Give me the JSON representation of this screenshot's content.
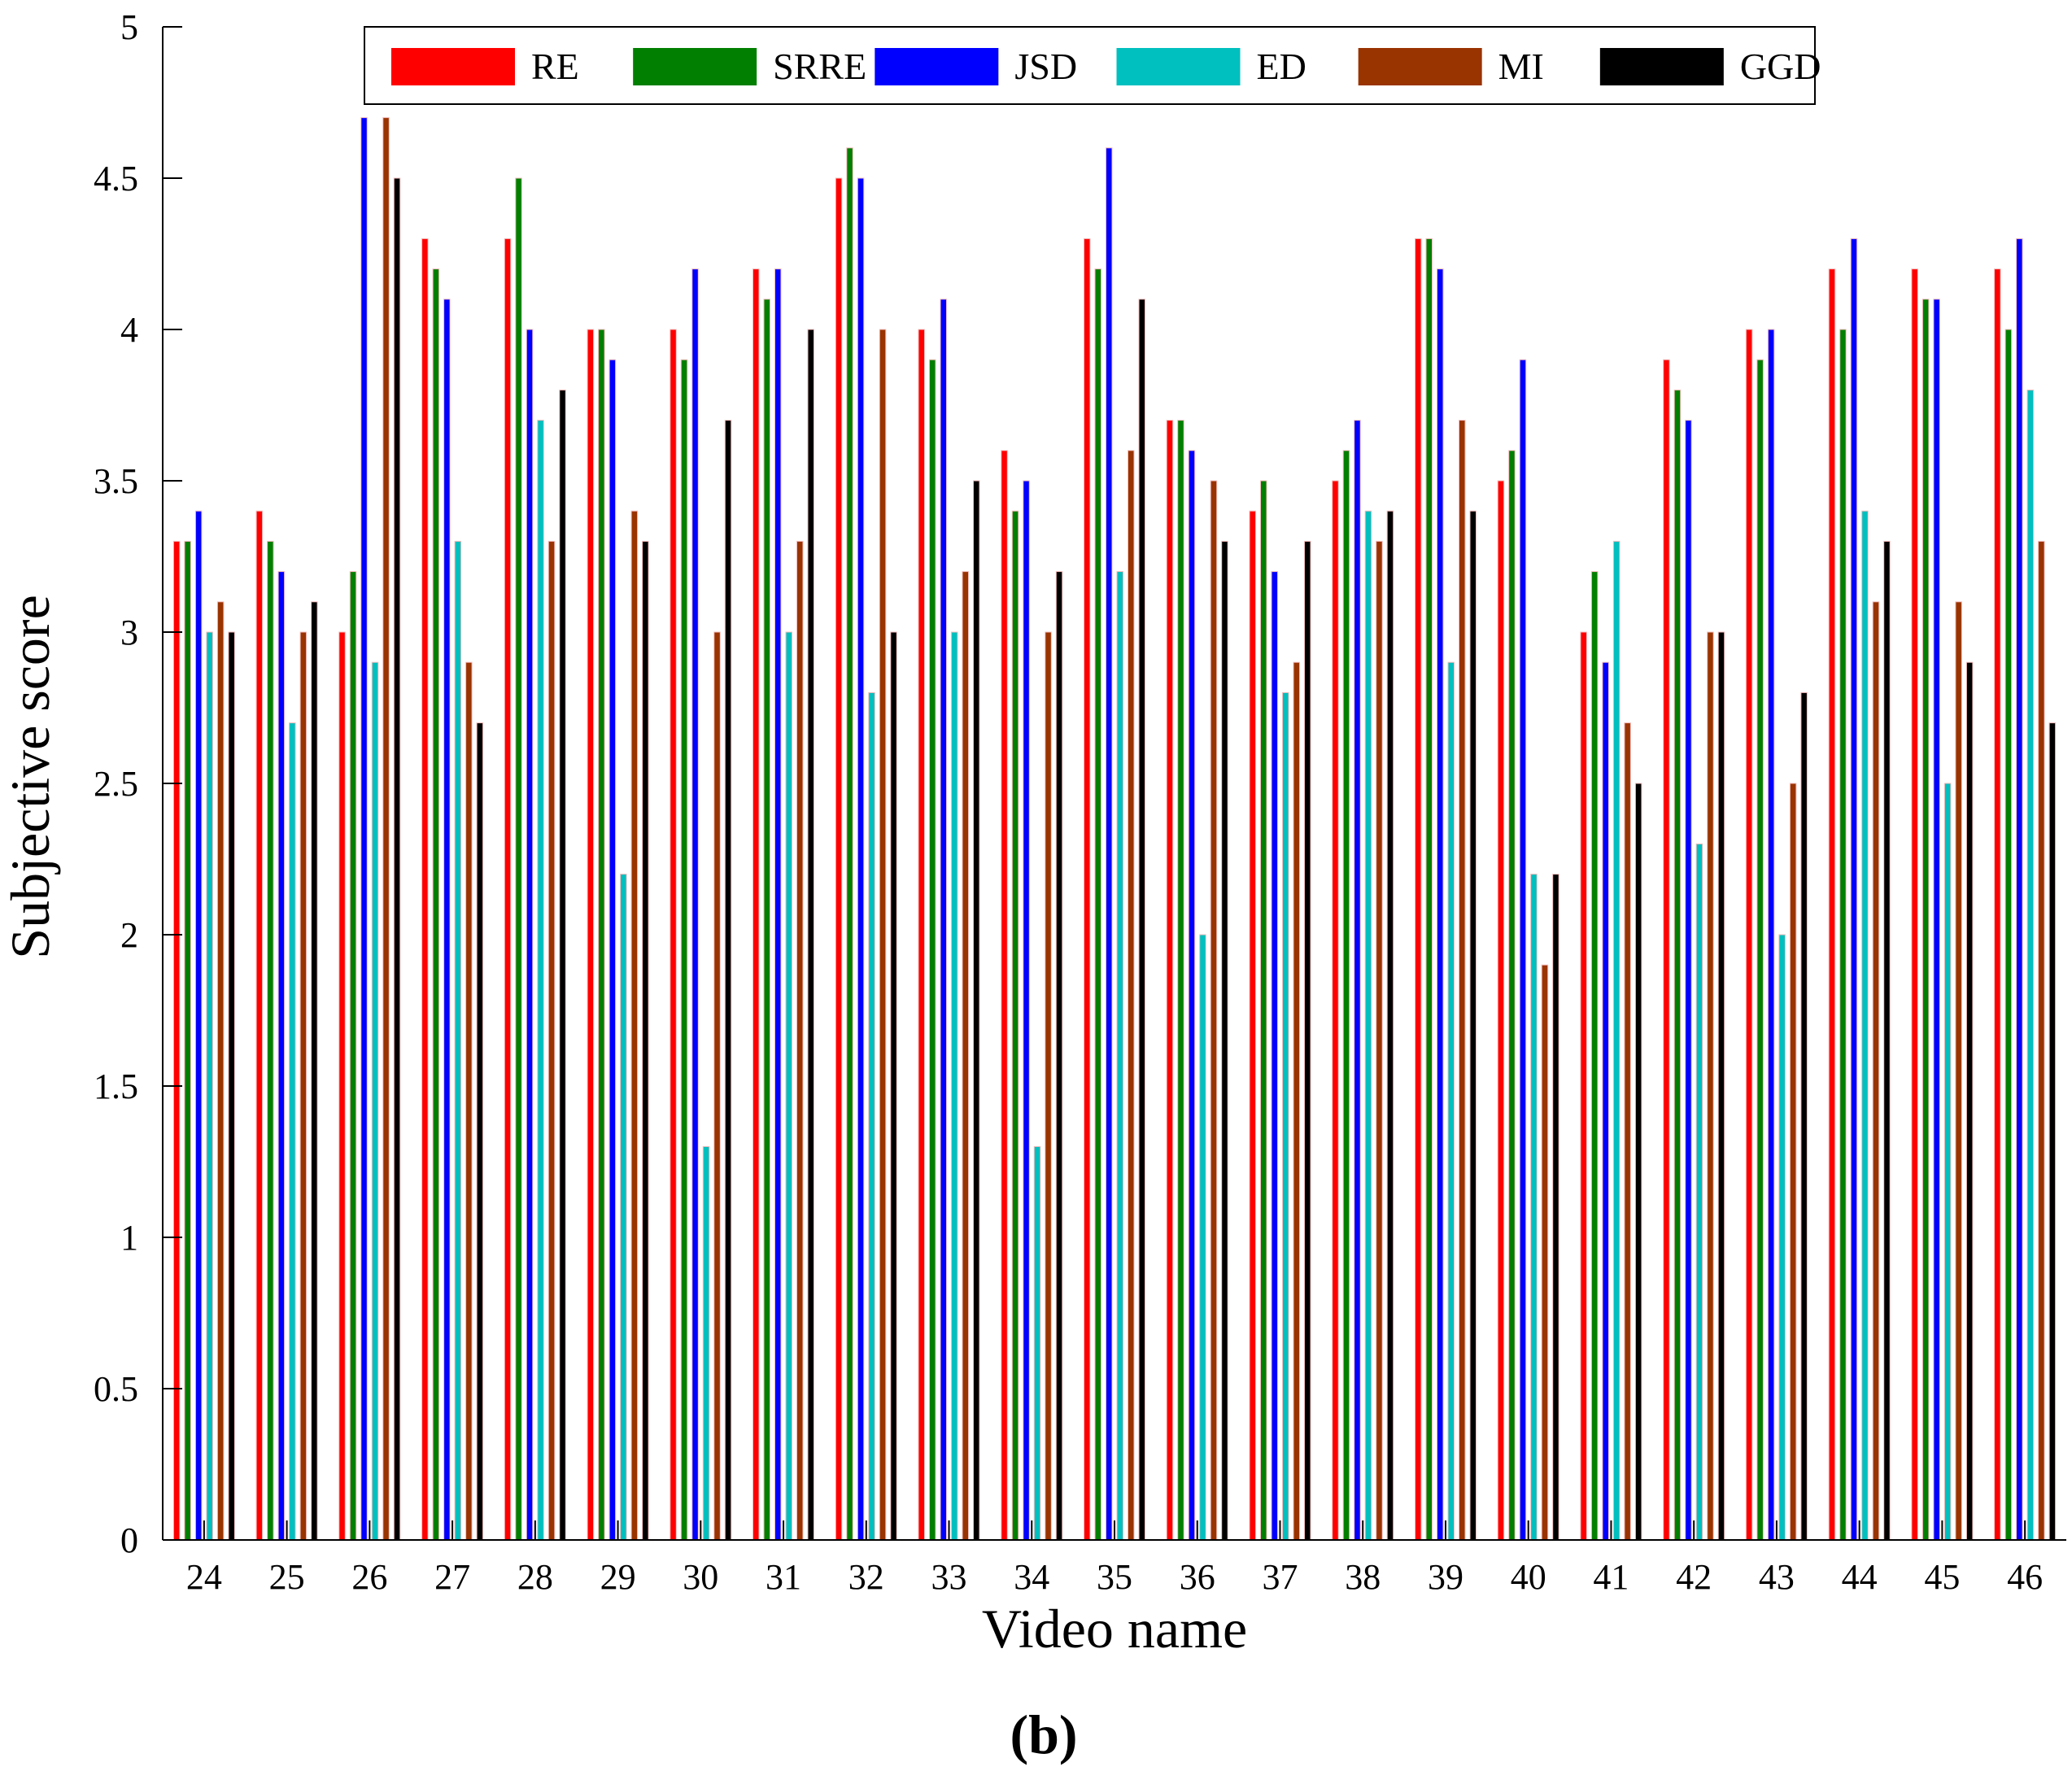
{
  "panel_label": "(b)",
  "chart_data": {
    "type": "bar",
    "xlabel": "Video name",
    "ylabel": "Subjective score",
    "ylim": [
      0,
      5
    ],
    "yticks": [
      "0",
      "0.5",
      "1",
      "1.5",
      "2",
      "2.5",
      "3",
      "3.5",
      "4",
      "4.5",
      "5"
    ],
    "grid": false,
    "legend_position": "top",
    "categories": [
      "24",
      "25",
      "26",
      "27",
      "28",
      "29",
      "30",
      "31",
      "32",
      "33",
      "34",
      "35",
      "36",
      "37",
      "38",
      "39",
      "40",
      "41",
      "42",
      "43",
      "44",
      "45",
      "46"
    ],
    "series": [
      {
        "name": "RE",
        "color": "#ff0000",
        "values": [
          3.3,
          3.4,
          3.0,
          4.3,
          4.3,
          4.0,
          4.0,
          4.2,
          4.5,
          4.0,
          3.6,
          4.3,
          3.7,
          3.4,
          3.5,
          4.3,
          3.5,
          3.0,
          3.9,
          4.0,
          4.2,
          4.2,
          4.2
        ]
      },
      {
        "name": "SRRE",
        "color": "#007f00",
        "values": [
          3.3,
          3.3,
          3.2,
          4.2,
          4.5,
          4.0,
          3.9,
          4.1,
          4.6,
          3.9,
          3.4,
          4.2,
          3.7,
          3.5,
          3.6,
          4.3,
          3.6,
          3.2,
          3.8,
          3.9,
          4.0,
          4.1,
          4.0
        ]
      },
      {
        "name": "JSD",
        "color": "#0000ff",
        "values": [
          3.4,
          3.2,
          4.7,
          4.1,
          4.0,
          3.9,
          4.2,
          4.2,
          4.5,
          4.1,
          3.5,
          4.6,
          3.6,
          3.2,
          3.7,
          4.2,
          3.9,
          2.9,
          3.7,
          4.0,
          4.3,
          4.1,
          4.3
        ]
      },
      {
        "name": "ED",
        "color": "#00bfbf",
        "values": [
          3.0,
          2.7,
          2.9,
          3.3,
          3.7,
          2.2,
          1.3,
          3.0,
          2.8,
          3.0,
          1.3,
          3.2,
          2.0,
          2.8,
          3.4,
          2.9,
          2.2,
          3.3,
          2.3,
          2.0,
          3.4,
          2.5,
          3.8
        ]
      },
      {
        "name": "MI",
        "color": "#993300",
        "values": [
          3.1,
          3.0,
          4.7,
          2.9,
          3.3,
          3.4,
          3.0,
          3.3,
          4.0,
          3.2,
          3.0,
          3.6,
          3.5,
          2.9,
          3.3,
          3.7,
          1.9,
          2.7,
          3.0,
          2.5,
          3.1,
          3.1,
          3.3
        ]
      },
      {
        "name": "GGD",
        "color": "#000000",
        "values": [
          3.0,
          3.1,
          4.5,
          2.7,
          3.8,
          3.3,
          3.7,
          4.0,
          3.0,
          3.5,
          3.2,
          4.1,
          3.3,
          3.3,
          3.4,
          3.4,
          2.2,
          2.5,
          3.0,
          2.8,
          3.3,
          2.9,
          2.7
        ]
      }
    ]
  }
}
